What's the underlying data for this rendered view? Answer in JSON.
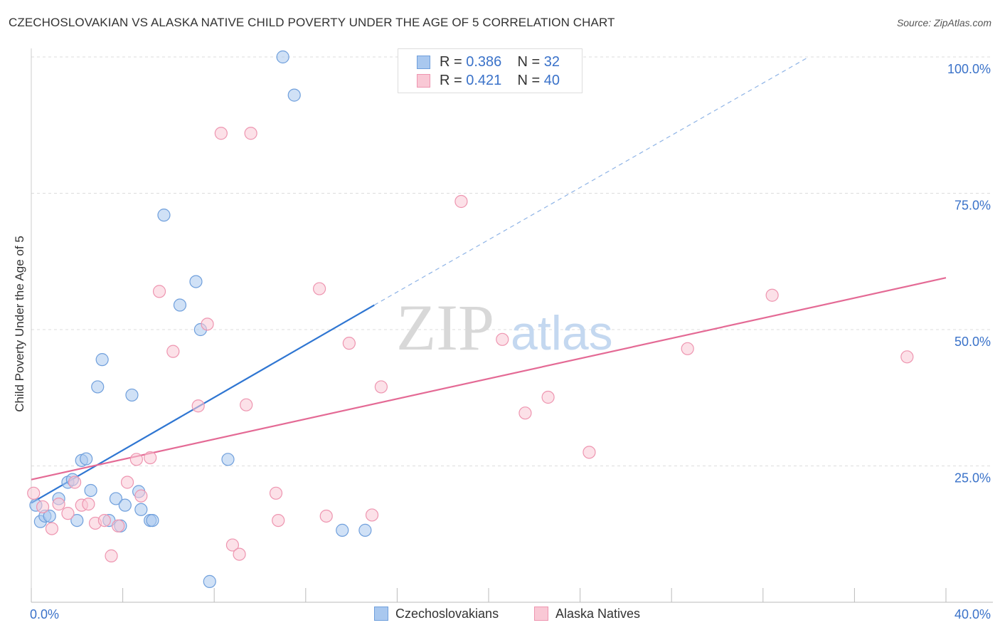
{
  "title": "CZECHOSLOVAKIAN VS ALASKA NATIVE CHILD POVERTY UNDER THE AGE OF 5 CORRELATION CHART",
  "source": "Source: ZipAtlas.com",
  "watermark": {
    "zip": "ZIP",
    "atlas": "atlas"
  },
  "legend": {
    "r_label": "R =",
    "n_label": "N =",
    "entries": [
      {
        "r": "0.386",
        "n": "32",
        "color": "#a9c8ef",
        "border": "#6f9fdc"
      },
      {
        "r": "0.421",
        "n": "40",
        "color": "#f9c8d5",
        "border": "#ee95b0"
      }
    ]
  },
  "bottom_legend": [
    "Czechoslovakians",
    "Alaska Natives"
  ],
  "chart_data": {
    "type": "scatter",
    "ylabel": "Child Poverty Under the Age of 5",
    "xlim": [
      0,
      40
    ],
    "ylim": [
      0,
      100
    ],
    "x_tick_labels": [
      "0.0%",
      "40.0%"
    ],
    "y_ticks": [
      25,
      50,
      75,
      100
    ],
    "y_tick_labels": [
      "25.0%",
      "50.0%",
      "75.0%",
      "100.0%"
    ],
    "grid": "horizontal dashed",
    "legend_position": "top-center",
    "series": [
      {
        "name": "Czechoslovakians",
        "color": "#a9c8ef",
        "stroke": "#6f9fdc",
        "line_color": "#2f76d2",
        "trend": {
          "x0": 0,
          "y0": 18.2,
          "x1": 15.0,
          "y1": 54.5,
          "dash_to_x": 34.0,
          "dash_to_y": 100
        },
        "points": [
          [
            0.2,
            17.8
          ],
          [
            0.4,
            14.8
          ],
          [
            0.6,
            15.8
          ],
          [
            0.8,
            15.8
          ],
          [
            1.2,
            19.0
          ],
          [
            1.6,
            22.0
          ],
          [
            1.8,
            22.5
          ],
          [
            2.0,
            15.0
          ],
          [
            2.2,
            26.0
          ],
          [
            2.4,
            26.3
          ],
          [
            2.6,
            20.5
          ],
          [
            2.9,
            39.5
          ],
          [
            3.1,
            44.5
          ],
          [
            3.4,
            15.0
          ],
          [
            3.7,
            19.0
          ],
          [
            3.9,
            14.0
          ],
          [
            4.1,
            17.8
          ],
          [
            4.4,
            38.0
          ],
          [
            4.7,
            20.3
          ],
          [
            4.8,
            17.0
          ],
          [
            5.2,
            15.0
          ],
          [
            5.3,
            15.0
          ],
          [
            5.8,
            71.0
          ],
          [
            6.5,
            54.5
          ],
          [
            7.2,
            58.8
          ],
          [
            7.4,
            50.0
          ],
          [
            7.8,
            3.8
          ],
          [
            8.6,
            26.2
          ],
          [
            11.0,
            100.0
          ],
          [
            11.5,
            93.0
          ],
          [
            13.6,
            13.2
          ],
          [
            14.6,
            13.2
          ]
        ]
      },
      {
        "name": "Alaska Natives",
        "color": "#f9c8d5",
        "stroke": "#ee95b0",
        "line_color": "#e46a95",
        "trend": {
          "x0": 0,
          "y0": 22.5,
          "x1": 40.0,
          "y1": 59.5
        },
        "points": [
          [
            0.1,
            20.0
          ],
          [
            0.5,
            17.5
          ],
          [
            0.9,
            13.5
          ],
          [
            1.2,
            18.0
          ],
          [
            1.6,
            16.3
          ],
          [
            1.9,
            22.0
          ],
          [
            2.2,
            17.8
          ],
          [
            2.5,
            18.0
          ],
          [
            2.8,
            14.5
          ],
          [
            3.2,
            15.0
          ],
          [
            3.5,
            8.5
          ],
          [
            3.8,
            14.0
          ],
          [
            4.2,
            22.0
          ],
          [
            4.6,
            26.2
          ],
          [
            4.8,
            19.5
          ],
          [
            5.2,
            26.5
          ],
          [
            5.6,
            57.0
          ],
          [
            6.2,
            46.0
          ],
          [
            7.3,
            36.0
          ],
          [
            7.7,
            51.0
          ],
          [
            8.3,
            86.0
          ],
          [
            8.8,
            10.5
          ],
          [
            9.1,
            8.8
          ],
          [
            9.4,
            36.2
          ],
          [
            9.6,
            86.0
          ],
          [
            10.7,
            20.0
          ],
          [
            10.8,
            15.0
          ],
          [
            12.6,
            57.5
          ],
          [
            12.9,
            15.8
          ],
          [
            13.9,
            47.5
          ],
          [
            14.9,
            16.0
          ],
          [
            15.3,
            39.5
          ],
          [
            18.8,
            73.5
          ],
          [
            20.6,
            48.2
          ],
          [
            21.6,
            34.7
          ],
          [
            22.6,
            37.6
          ],
          [
            24.4,
            27.5
          ],
          [
            28.7,
            46.5
          ],
          [
            32.4,
            56.3
          ],
          [
            38.3,
            45.0
          ]
        ]
      }
    ]
  }
}
